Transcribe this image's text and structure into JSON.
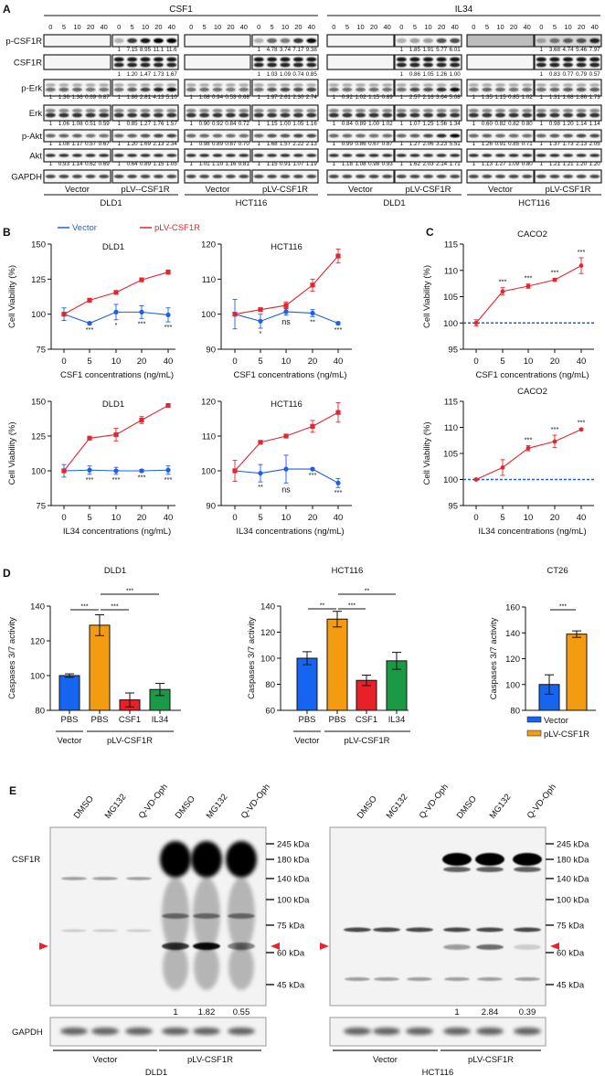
{
  "panel_labels": {
    "a": "A",
    "b": "B",
    "c": "C",
    "d": "D",
    "e": "E"
  },
  "colors": {
    "vector": "#1f5fe6",
    "pLV": "#e3262f",
    "bar_vector": "#1565f0",
    "bar_pbs": "#f39c12",
    "bar_csf1": "#e8202a",
    "bar_il34": "#1a9a45"
  },
  "panel_a": {
    "doses": [
      "0",
      "5",
      "10",
      "20",
      "40"
    ],
    "row_labels": [
      "p-CSF1R",
      "CSF1R",
      "p-Erk",
      "Erk",
      "p-Akt",
      "Akt",
      "GAPDH"
    ],
    "ligands": [
      {
        "name": "CSF1",
        "cells": [
          {
            "name": "DLD1",
            "groups": [
              {
                "name": "Vector",
                "quant": [
                  null,
                  null,
                  [
                    "1",
                    "1.36",
                    "1.36",
                    "0.69",
                    "0.87"
                  ],
                  [
                    "1",
                    "1.06",
                    "1.08",
                    "0.51",
                    "0.59"
                  ],
                  [
                    "1",
                    "1.08",
                    "1.17",
                    "0.57",
                    "0.67"
                  ],
                  [
                    "1",
                    "0.93",
                    "1.14",
                    "0.62",
                    "0.69"
                  ],
                  null
                ]
              },
              {
                "name": "pLV--CSF1R",
                "quant": [
                  [
                    "1",
                    "7.15",
                    "8.95",
                    "11.1",
                    "11.6"
                  ],
                  [
                    "1",
                    "1.20",
                    "1.47",
                    "1.73",
                    "1.67"
                  ],
                  [
                    "1",
                    "1.86",
                    "2.81",
                    "4.13",
                    "5.10"
                  ],
                  [
                    "1",
                    "0.85",
                    "1.27",
                    "1.76",
                    "1.57"
                  ],
                  [
                    "1",
                    "1.20",
                    "1.69",
                    "2.13",
                    "2.34"
                  ],
                  [
                    "1",
                    "0.64",
                    "0.89",
                    "1.15",
                    "1.05"
                  ],
                  null
                ]
              }
            ]
          },
          {
            "name": "HCT116",
            "groups": [
              {
                "name": "Vector",
                "quant": [
                  null,
                  null,
                  [
                    "1",
                    "1.08",
                    "0.94",
                    "0.53",
                    "0.68"
                  ],
                  [
                    "1",
                    "0.90",
                    "0.92",
                    "0.84",
                    "0.72"
                  ],
                  [
                    "1",
                    "0.98",
                    "0.89",
                    "0.87",
                    "0.70"
                  ],
                  [
                    "1",
                    "1.01",
                    "1.10",
                    "1.16",
                    "0.81"
                  ],
                  null
                ]
              },
              {
                "name": "pLV-CSF1R",
                "quant": [
                  [
                    "1",
                    "4.78",
                    "3.74",
                    "7.17",
                    "9.38"
                  ],
                  [
                    "1",
                    "1.03",
                    "1.09",
                    "0.74",
                    "0.85"
                  ],
                  [
                    "1",
                    "1.97",
                    "2.61",
                    "2.30",
                    "2.74"
                  ],
                  [
                    "1",
                    "1.15",
                    "1.00",
                    "1.05",
                    "1.16"
                  ],
                  [
                    "1",
                    "1.68",
                    "1.57",
                    "2.22",
                    "2.13"
                  ],
                  [
                    "1",
                    "1.15",
                    "0.91",
                    "1.07",
                    "1.19"
                  ],
                  null
                ]
              }
            ]
          }
        ]
      },
      {
        "name": "IL34",
        "cells": [
          {
            "name": "DLD1",
            "groups": [
              {
                "name": "Vector",
                "quant": [
                  null,
                  null,
                  [
                    "1",
                    "0.92",
                    "1.02",
                    "1.15",
                    "0.89"
                  ],
                  [
                    "1",
                    "0.84",
                    "0.89",
                    "1.00",
                    "1.02"
                  ],
                  [
                    "1",
                    "0.99",
                    "0.86",
                    "0.67",
                    "0.87"
                  ],
                  [
                    "1",
                    "1.18",
                    "1.08",
                    "0.98",
                    "0.93"
                  ],
                  null
                ]
              },
              {
                "name": "pLV-CSF1R",
                "quant": [
                  [
                    "1",
                    "1.85",
                    "1.91",
                    "5.77",
                    "6.01"
                  ],
                  [
                    "1",
                    "0.86",
                    "1.05",
                    "1.26",
                    "1.00"
                  ],
                  [
                    "1",
                    "2.57",
                    "2.16",
                    "3.64",
                    "5.08"
                  ],
                  [
                    "1",
                    "1.07",
                    "1.25",
                    "1.56",
                    "1.34"
                  ],
                  [
                    "1",
                    "1.27",
                    "2.06",
                    "3.23",
                    "5.51"
                  ],
                  [
                    "1",
                    "1.62",
                    "2.03",
                    "2.14",
                    "1.71"
                  ],
                  null
                ]
              }
            ]
          },
          {
            "name": "HCT116",
            "groups": [
              {
                "name": "Vector",
                "quant": [
                  null,
                  null,
                  [
                    "1",
                    "1.35",
                    "1.15",
                    "0.85",
                    "1.02"
                  ],
                  [
                    "1",
                    "0.60",
                    "0.82",
                    "0.82",
                    "0.80"
                  ],
                  [
                    "1",
                    "1.26",
                    "0.91",
                    "0.85",
                    "0.71"
                  ],
                  [
                    "1",
                    "1.13",
                    "1.27",
                    "1.09",
                    "0.80"
                  ],
                  null
                ]
              },
              {
                "name": "pLV-CSF1R",
                "quant": [
                  [
                    "1",
                    "3.68",
                    "4.74",
                    "5.46",
                    "7.97"
                  ],
                  [
                    "1",
                    "0.83",
                    "0.77",
                    "0.79",
                    "0.57"
                  ],
                  [
                    "1",
                    "1.31",
                    "1.68",
                    "1.86",
                    "1.73"
                  ],
                  [
                    "1",
                    "0.98",
                    "1.20",
                    "1.14",
                    "1.14"
                  ],
                  [
                    "1",
                    "1.37",
                    "1.73",
                    "2.13",
                    "2.05"
                  ],
                  [
                    "1",
                    "1.21",
                    "1.21",
                    "1.20",
                    "1.20"
                  ],
                  null
                ]
              }
            ]
          }
        ]
      }
    ]
  },
  "legend_b": {
    "vector": "Vector",
    "pLV": "pLV-CSF1R"
  },
  "chart_data": [
    {
      "panel": "B",
      "type": "line",
      "title": "DLD1",
      "xlabel": "CSF1 concentrations (ng/mL)",
      "ylabel": "Cell Viability (%)",
      "x": [
        "0",
        "5",
        "10",
        "20",
        "40"
      ],
      "ylim": [
        75,
        150
      ],
      "yticks": [
        75,
        100,
        125,
        150
      ],
      "series": [
        {
          "name": "Vector",
          "values": [
            100,
            93.5,
            101.5,
            101.5,
            99.5
          ],
          "errors": [
            4.5,
            1,
            5.5,
            4.5,
            5
          ]
        },
        {
          "name": "pLV-CSF1R",
          "values": [
            100,
            110,
            115.5,
            124.5,
            130
          ],
          "errors": [
            1,
            1,
            1,
            1,
            1.5
          ]
        }
      ],
      "significance": [
        "",
        "***",
        "*",
        "***",
        "***"
      ]
    },
    {
      "panel": "B",
      "type": "line",
      "title": "HCT116",
      "xlabel": "CSF1 concentrations (ng/mL)",
      "ylabel": "",
      "x": [
        "0",
        "5",
        "10",
        "20",
        "40"
      ],
      "ylim": [
        90,
        120
      ],
      "yticks": [
        90,
        100,
        110,
        120
      ],
      "series": [
        {
          "name": "Vector",
          "values": [
            100,
            98,
            100.7,
            100.3,
            97.4
          ],
          "errors": [
            4.2,
            2,
            1,
            1,
            0.4
          ]
        },
        {
          "name": "pLV-CSF1R",
          "values": [
            100,
            101.3,
            102.5,
            108.3,
            116.6
          ],
          "errors": [
            0.3,
            0.4,
            1,
            1.7,
            2
          ]
        }
      ],
      "significance": [
        "",
        "*",
        "ns",
        "**",
        "***"
      ]
    },
    {
      "panel": "B",
      "type": "line",
      "title": "DLD1",
      "xlabel": "IL34 concentrations (ng/mL)",
      "ylabel": "Cell Viability (%)",
      "x": [
        "0",
        "5",
        "10",
        "20",
        "40"
      ],
      "ylim": [
        75,
        150
      ],
      "yticks": [
        75,
        100,
        125,
        150
      ],
      "series": [
        {
          "name": "Vector",
          "values": [
            100,
            100.5,
            100,
            100,
            100.5
          ],
          "errors": [
            4.5,
            3,
            2.5,
            1,
            3
          ]
        },
        {
          "name": "pLV-CSF1R",
          "values": [
            100,
            123.5,
            126,
            136.5,
            147
          ],
          "errors": [
            1,
            1,
            4.5,
            2.5,
            1
          ]
        }
      ],
      "significance": [
        "",
        "***",
        "***",
        "***",
        "***"
      ]
    },
    {
      "panel": "B",
      "type": "line",
      "title": "HCT116",
      "xlabel": "IL34 concentrations (ng/mL)",
      "ylabel": "",
      "x": [
        "0",
        "5",
        "10",
        "20",
        "40"
      ],
      "ylim": [
        90,
        120
      ],
      "yticks": [
        90,
        100,
        110,
        120
      ],
      "series": [
        {
          "name": "Vector",
          "values": [
            100,
            99.3,
            100.5,
            100.5,
            96.5
          ],
          "errors": [
            0.5,
            2.5,
            4,
            0.3,
            1.3
          ]
        },
        {
          "name": "pLV-CSF1R",
          "values": [
            100,
            108.2,
            110,
            112.8,
            116.8
          ],
          "errors": [
            3,
            0.4,
            0.4,
            1.7,
            2.8
          ]
        }
      ],
      "significance": [
        "",
        "**",
        "ns",
        "***",
        "***"
      ]
    },
    {
      "panel": "C",
      "type": "line",
      "title": "CACO2",
      "xlabel": "CSF1 concentrations (ng/mL)",
      "ylabel": "Cell Viability (%)",
      "x": [
        "0",
        "5",
        "10",
        "20",
        "40"
      ],
      "ylim": [
        95,
        115
      ],
      "yticks": [
        95,
        100,
        105,
        110,
        115
      ],
      "reference_line": 100,
      "series": [
        {
          "name": "pLV-CSF1R",
          "values": [
            100,
            106,
            107,
            108.2,
            110.9
          ],
          "errors": [
            0.6,
            0.7,
            0.4,
            0.3,
            1.5
          ]
        }
      ],
      "significance": [
        "",
        "***",
        "***",
        "***",
        "***"
      ]
    },
    {
      "panel": "C",
      "type": "line",
      "title": "CACO2",
      "xlabel": "IL34 concentrations (ng/mL)",
      "ylabel": "Cell Viability (%)",
      "x": [
        "0",
        "5",
        "10",
        "20",
        "40"
      ],
      "ylim": [
        95,
        115
      ],
      "yticks": [
        95,
        100,
        105,
        110,
        115
      ],
      "reference_line": 100,
      "series": [
        {
          "name": "pLV-CSF1R",
          "values": [
            100,
            102.3,
            106,
            107.3,
            109.6
          ],
          "errors": [
            0.2,
            1.5,
            0.5,
            1.2,
            0.2
          ]
        }
      ],
      "significance": [
        "",
        "",
        "***",
        "***",
        "***"
      ]
    },
    {
      "panel": "D",
      "type": "bar",
      "title": "DLD1",
      "ylabel": "Caspases 3/7 activity",
      "categories": [
        "PBS",
        "PBS",
        "CSF1",
        "IL34"
      ],
      "groups": [
        "Vector",
        "pLV-CSF1R"
      ],
      "values": [
        100,
        129,
        86,
        92
      ],
      "errors": [
        1,
        6,
        4,
        3.5
      ],
      "ylim": [
        80,
        140
      ],
      "yticks": [
        80,
        100,
        120,
        140
      ],
      "significance": [
        {
          "pair": [
            0,
            1
          ],
          "label": "***"
        },
        {
          "pair": [
            1,
            2
          ],
          "label": "***"
        },
        {
          "pair": [
            1,
            3
          ],
          "label": "***"
        }
      ]
    },
    {
      "panel": "D",
      "type": "bar",
      "title": "HCT116",
      "ylabel": "Caspases 3/7 activity",
      "categories": [
        "PBS",
        "PBS",
        "CSF1",
        "IL34"
      ],
      "groups": [
        "Vector",
        "pLV-CSF1R"
      ],
      "values": [
        100,
        130,
        83,
        98
      ],
      "errors": [
        5,
        6,
        4,
        6.5
      ],
      "ylim": [
        60,
        140
      ],
      "yticks": [
        60,
        80,
        100,
        120,
        140
      ],
      "significance": [
        {
          "pair": [
            0,
            1
          ],
          "label": "**"
        },
        {
          "pair": [
            1,
            2
          ],
          "label": "***"
        },
        {
          "pair": [
            1,
            3
          ],
          "label": "**"
        }
      ]
    },
    {
      "panel": "D",
      "type": "bar",
      "title": "CT26",
      "ylabel": "Caspases 3/7 activity",
      "legend": [
        "Vector",
        "pLV-CSF1R"
      ],
      "values": [
        100,
        139
      ],
      "errors": [
        7.5,
        2.5
      ],
      "ylim": [
        80,
        160
      ],
      "yticks": [
        80,
        100,
        120,
        140,
        160
      ],
      "significance": [
        {
          "pair": [
            0,
            1
          ],
          "label": "***"
        }
      ]
    }
  ],
  "panel_e": {
    "lanes": [
      "DMSO",
      "MG132",
      "Q-VD-Oph",
      "DMSO",
      "MG132",
      "Q-VD-Oph"
    ],
    "row_labels": [
      "CSF1R",
      "GAPDH"
    ],
    "markers": [
      "245 kDa",
      "180 kDa",
      "140 kDa",
      "100 kDa",
      "75 kDa",
      "60 kDa",
      "45 kDa"
    ],
    "groups": [
      "Vector",
      "pLV-CSF1R"
    ],
    "blots": [
      {
        "cell": "DLD1",
        "quant": [
          "1",
          "1.82",
          "0.55"
        ]
      },
      {
        "cell": "HCT116",
        "quant": [
          "1",
          "2.84",
          "0.39"
        ]
      }
    ]
  }
}
